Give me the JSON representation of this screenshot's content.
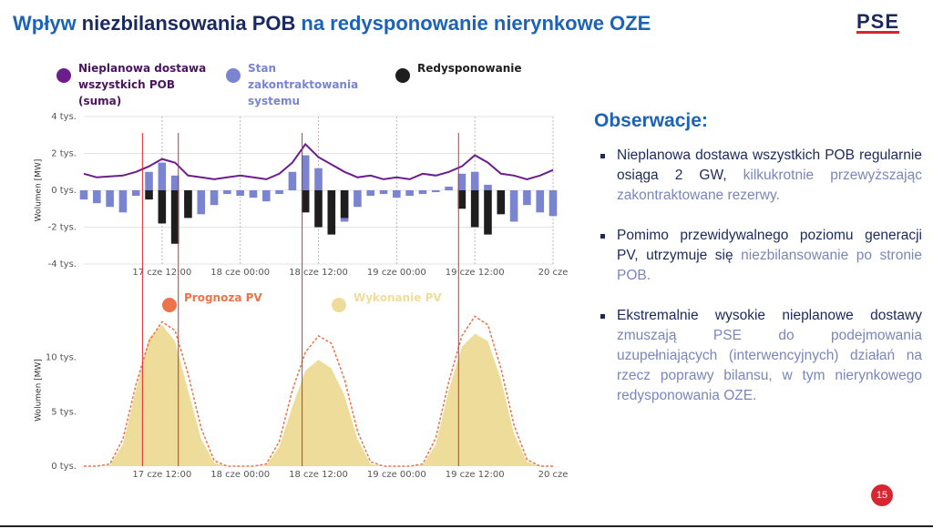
{
  "header": {
    "title": [
      "Wpływ",
      "niezbilansowania POB",
      "na redysponowanie nierynkowe OZE"
    ],
    "logo": "PSE"
  },
  "observations": {
    "heading": "Obserwacje:",
    "items": [
      [
        "Nieplanowa dostawa wszystkich POB regularnie osiąga 2 GW,",
        "kilkukrotnie przewyższając zakontraktowane rezerwy."
      ],
      [
        "Pomimo przewidywalnego poziomu generacji PV, utrzymuje się",
        "niezbilansowanie po stronie POB."
      ],
      [
        "Ekstremalnie wysokie nieplanowe dostawy",
        "zmuszają PSE do podejmowania uzupełniających (interwencyjnych) działań na rzecz poprawy bilansu, w tym nierynkowego redysponowania OZE."
      ]
    ]
  },
  "page_number": "15",
  "chart_data": [
    {
      "type": "combo",
      "y_label": "Wolumen [MW]",
      "x": [
        0,
        2,
        4,
        6,
        8,
        10,
        12,
        14,
        16,
        18,
        20,
        22,
        24,
        26,
        28,
        30,
        32,
        34,
        36,
        38,
        40,
        42,
        44,
        46,
        48,
        50,
        52,
        54,
        56,
        58,
        60,
        62,
        64,
        66,
        68,
        70,
        72
      ],
      "xlim": [
        0,
        72
      ],
      "xticks": [
        {
          "value": 12,
          "label": "17 cze 12:00"
        },
        {
          "value": 24,
          "label": "18 cze 00:00"
        },
        {
          "value": 36,
          "label": "18 cze 12:00"
        },
        {
          "value": 48,
          "label": "19 cze 00:00"
        },
        {
          "value": 60,
          "label": "19 cze 12:00"
        },
        {
          "value": 72,
          "label": "20 cze"
        }
      ],
      "ylim": [
        -4000,
        4000
      ],
      "yticks": [
        {
          "value": -4000,
          "label": "-4 tys."
        },
        {
          "value": -2000,
          "label": "-2 tys."
        },
        {
          "value": 0,
          "label": "0 tys."
        },
        {
          "value": 2000,
          "label": "2 tys."
        },
        {
          "value": 4000,
          "label": "4 tys."
        }
      ],
      "grid": true,
      "xgrid": true,
      "vlines": [
        9,
        14.5,
        33.5,
        57.5
      ],
      "vline_color": "#e0262f",
      "series": [
        {
          "name": "Nieplanowa dostawa wszystkich POB (suma)",
          "type": "line",
          "color": "#6c1d8c",
          "values": [
            900,
            700,
            750,
            800,
            1000,
            1300,
            1700,
            1500,
            800,
            700,
            600,
            700,
            800,
            700,
            600,
            900,
            1500,
            2500,
            1800,
            1400,
            1000,
            700,
            800,
            600,
            700,
            600,
            900,
            800,
            1000,
            1300,
            1900,
            1500,
            900,
            800,
            600,
            800,
            1100
          ]
        },
        {
          "name": "Stan zakontraktowania systemu",
          "type": "bar",
          "color": "#7b84d0",
          "values": [
            -500,
            -700,
            -900,
            -1200,
            -300,
            1000,
            1500,
            800,
            -1000,
            -1300,
            -800,
            -200,
            -300,
            -400,
            -600,
            -200,
            1000,
            1900,
            1200,
            -500,
            -1700,
            -900,
            -300,
            -200,
            -400,
            -300,
            -200,
            -100,
            200,
            900,
            1000,
            300,
            -1000,
            -1700,
            -800,
            -1200,
            -1400
          ]
        },
        {
          "name": "Redysponowanie",
          "type": "bar",
          "color": "#1e1e1e",
          "values": [
            0,
            0,
            0,
            0,
            0,
            -500,
            -1800,
            -2900,
            -1500,
            0,
            0,
            0,
            0,
            0,
            0,
            0,
            0,
            -1200,
            -2000,
            -2400,
            -1500,
            0,
            0,
            0,
            0,
            0,
            0,
            0,
            0,
            -1000,
            -2000,
            -2400,
            -1300,
            0,
            0,
            0,
            0
          ]
        }
      ]
    },
    {
      "type": "area",
      "y_label": "Wolumen [MW]",
      "x": [
        0,
        2,
        4,
        6,
        8,
        10,
        12,
        14,
        16,
        18,
        20,
        22,
        24,
        26,
        28,
        30,
        32,
        34,
        36,
        38,
        40,
        42,
        44,
        46,
        48,
        50,
        52,
        54,
        56,
        58,
        60,
        62,
        64,
        66,
        68,
        70,
        72
      ],
      "xlim": [
        0,
        72
      ],
      "xticks": [
        {
          "value": 12,
          "label": "17 cze 12:00"
        },
        {
          "value": 24,
          "label": "18 cze 00:00"
        },
        {
          "value": 36,
          "label": "18 cze 12:00"
        },
        {
          "value": 48,
          "label": "19 cze 00:00"
        },
        {
          "value": 60,
          "label": "19 cze 12:00"
        },
        {
          "value": 72,
          "label": "20 cze"
        }
      ],
      "ylim": [
        0,
        14000
      ],
      "yticks": [
        {
          "value": 0,
          "label": "0 tys."
        },
        {
          "value": 5000,
          "label": "5 tys."
        },
        {
          "value": 10000,
          "label": "10 tys."
        }
      ],
      "grid": false,
      "xgrid": false,
      "series": [
        {
          "name": "Prognoza PV",
          "type": "dashed-line",
          "color": "#ec7448",
          "values": [
            0,
            0,
            200,
            2500,
            7500,
            11500,
            13300,
            12500,
            8500,
            3500,
            500,
            0,
            0,
            0,
            200,
            2300,
            7000,
            10500,
            12000,
            11300,
            8000,
            3200,
            400,
            0,
            0,
            0,
            200,
            2600,
            7800,
            12000,
            13800,
            13000,
            9000,
            3800,
            600,
            0,
            0
          ]
        },
        {
          "name": "Wykonanie PV",
          "type": "area",
          "color": "#eedd9a",
          "values": [
            0,
            0,
            100,
            2000,
            7000,
            11800,
            13000,
            11500,
            7000,
            2500,
            300,
            0,
            0,
            0,
            100,
            1800,
            5500,
            8800,
            9800,
            9000,
            6500,
            2500,
            200,
            0,
            0,
            0,
            100,
            2000,
            7000,
            11000,
            12200,
            11500,
            8000,
            3000,
            400,
            0,
            0
          ]
        }
      ]
    }
  ]
}
